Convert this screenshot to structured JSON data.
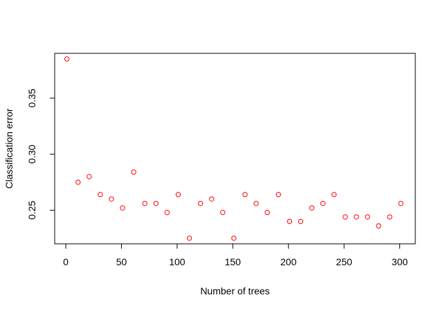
{
  "chart_data": {
    "type": "scatter",
    "title": "",
    "xlabel": "Number of trees",
    "ylabel": "Classification error",
    "xlim": [
      -10,
      314
    ],
    "ylim": [
      0.22,
      0.39
    ],
    "xticks": [
      0,
      50,
      100,
      150,
      200,
      250,
      300
    ],
    "yticks": [
      0.25,
      0.3,
      0.35
    ],
    "ytick_labels": [
      "0.25",
      "0.30",
      "0.35"
    ],
    "grid": false,
    "legend": "none",
    "marker": "open-circle",
    "color": "#ff0000",
    "series": [
      {
        "x": [
          1,
          11,
          21,
          31,
          41,
          51,
          61,
          71,
          81,
          91,
          101,
          111,
          121,
          131,
          141,
          151,
          161,
          171,
          181,
          191,
          201,
          211,
          221,
          231,
          241,
          251,
          261,
          271,
          281,
          291,
          301
        ],
        "y": [
          0.385,
          0.275,
          0.28,
          0.264,
          0.26,
          0.252,
          0.284,
          0.256,
          0.256,
          0.248,
          0.264,
          0.225,
          0.256,
          0.26,
          0.248,
          0.225,
          0.264,
          0.256,
          0.248,
          0.264,
          0.24,
          0.24,
          0.252,
          0.256,
          0.264,
          0.244,
          0.244,
          0.244,
          0.236,
          0.244,
          0.256
        ]
      }
    ]
  }
}
